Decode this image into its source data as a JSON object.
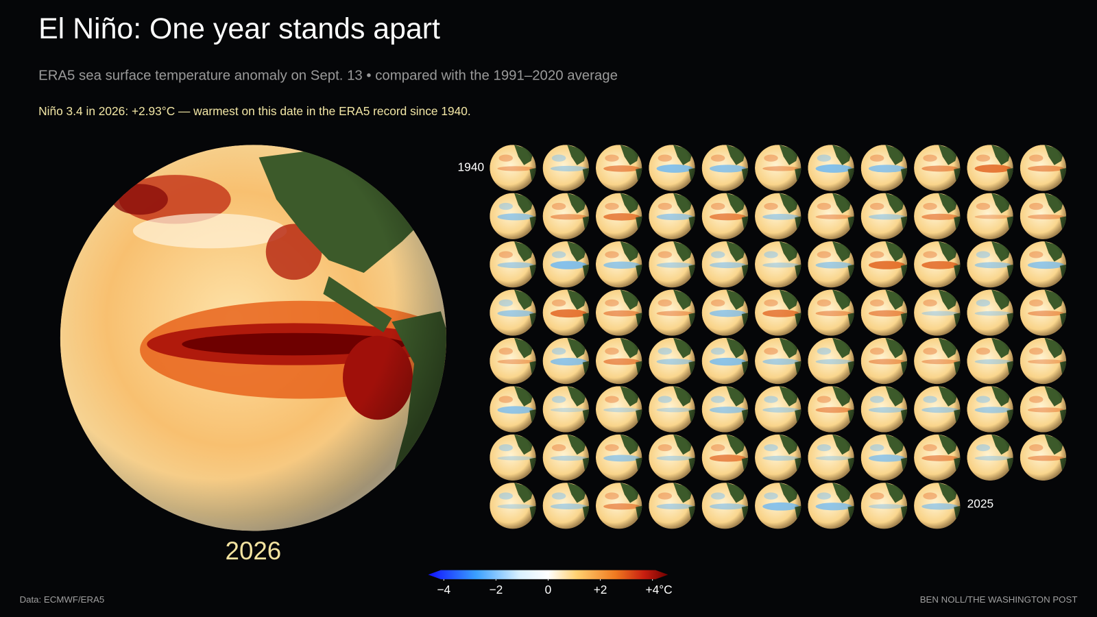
{
  "header": {
    "title": "El Niño: One year stands apart",
    "subtitle": "ERA5 sea surface temperature anomaly on Sept. 13 • compared with the 1991–2020 average",
    "note": "Niño 3.4 in 2026: +2.93°C — warmest on this date in the ERA5 record since 1940."
  },
  "feature": {
    "label": 2026
  },
  "small_multiples": {
    "first_year": 1940,
    "last_year": 2025,
    "columns": 11
  },
  "colorbar": {
    "lim": [
      -4.6,
      4.6
    ],
    "ticks": [
      {
        "value": -4,
        "label": "−4"
      },
      {
        "value": -2,
        "label": "−2"
      },
      0,
      {
        "value": 2,
        "label": "+2"
      },
      {
        "value": 4,
        "label": "+4°C"
      }
    ]
  },
  "footer": {
    "source": "Data: ECMWF/ERA5",
    "credit": "BEN NOLL/THE WASHINGTON POST"
  }
}
